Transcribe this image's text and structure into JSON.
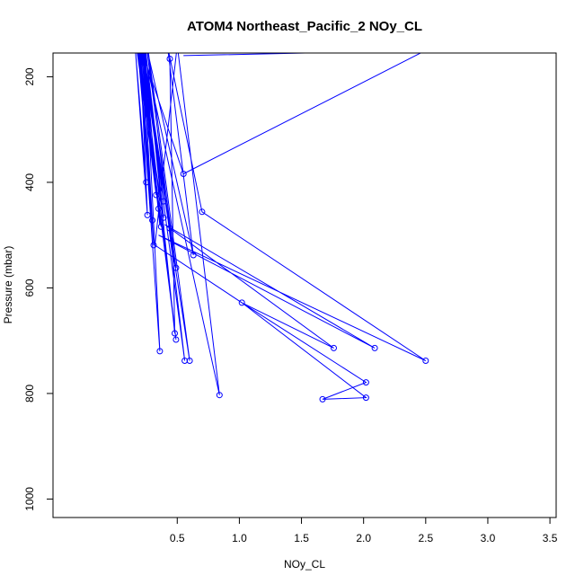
{
  "chart_data": {
    "type": "line",
    "title": "ATOM4 Northeast_Pacific_2 NOy_CL",
    "xlabel": "NOy_CL",
    "ylabel": "Pressure (mbar)",
    "xlim": [
      -0.5,
      3.55
    ],
    "ylim": [
      1035,
      155
    ],
    "y_reversed": true,
    "grid": false,
    "x_ticks": [
      {
        "value": 0.5,
        "label": "0.5"
      },
      {
        "value": 1.0,
        "label": "1.0"
      },
      {
        "value": 1.5,
        "label": "1.5"
      },
      {
        "value": 2.0,
        "label": "2.0"
      },
      {
        "value": 2.5,
        "label": "2.5"
      },
      {
        "value": 3.0,
        "label": "3.0"
      },
      {
        "value": 3.5,
        "label": "3.5"
      }
    ],
    "y_ticks": [
      {
        "value": 200,
        "label": "200"
      },
      {
        "value": 400,
        "label": "400"
      },
      {
        "value": 600,
        "label": "600"
      },
      {
        "value": 800,
        "label": "800"
      },
      {
        "value": 1000,
        "label": "1000"
      }
    ],
    "color": "#0000ff",
    "series": [
      {
        "points": [
          {
            "x": 0.55,
            "y": 160
          },
          {
            "x": 2.5,
            "y": 150
          },
          {
            "x": 0.55,
            "y": 384
          },
          {
            "x": 0.2,
            "y": 140
          },
          {
            "x": 0.25,
            "y": 400
          },
          {
            "x": 0.16,
            "y": 140
          },
          {
            "x": 0.26,
            "y": 462
          },
          {
            "x": 0.2,
            "y": 140
          },
          {
            "x": 0.3,
            "y": 472
          },
          {
            "x": 0.18,
            "y": 140
          },
          {
            "x": 0.33,
            "y": 424
          },
          {
            "x": 0.22,
            "y": 140
          },
          {
            "x": 0.31,
            "y": 519
          },
          {
            "x": 0.19,
            "y": 140
          },
          {
            "x": 0.35,
            "y": 450
          },
          {
            "x": 0.23,
            "y": 140
          },
          {
            "x": 0.36,
            "y": 481
          },
          {
            "x": 0.21,
            "y": 140
          },
          {
            "x": 0.39,
            "y": 436
          },
          {
            "x": 0.24,
            "y": 140
          },
          {
            "x": 0.39,
            "y": 467
          },
          {
            "x": 0.17,
            "y": 140
          },
          {
            "x": 0.37,
            "y": 484
          },
          {
            "x": 0.2,
            "y": 140
          },
          {
            "x": 0.44,
            "y": 487
          },
          {
            "x": 0.22,
            "y": 140
          },
          {
            "x": 0.49,
            "y": 562
          },
          {
            "x": 0.25,
            "y": 140
          },
          {
            "x": 0.63,
            "y": 538
          },
          {
            "x": 0.42,
            "y": 140
          },
          {
            "x": 0.7,
            "y": 456
          },
          {
            "x": 2.5,
            "y": 738
          },
          {
            "x": 0.35,
            "y": 500
          },
          {
            "x": 2.09,
            "y": 714
          },
          {
            "x": 0.4,
            "y": 480
          },
          {
            "x": 1.76,
            "y": 714
          },
          {
            "x": 1.02,
            "y": 628
          },
          {
            "x": 2.02,
            "y": 779
          },
          {
            "x": 1.67,
            "y": 811
          },
          {
            "x": 2.02,
            "y": 808
          },
          {
            "x": 1.02,
            "y": 628
          },
          {
            "x": 0.32,
            "y": 519
          },
          {
            "x": 0.5,
            "y": 140
          },
          {
            "x": 0.84,
            "y": 803
          },
          {
            "x": 0.22,
            "y": 140
          },
          {
            "x": 0.56,
            "y": 738
          },
          {
            "x": 0.26,
            "y": 140
          },
          {
            "x": 0.6,
            "y": 738
          },
          {
            "x": 0.21,
            "y": 140
          },
          {
            "x": 0.49,
            "y": 698
          },
          {
            "x": 0.19,
            "y": 140
          },
          {
            "x": 0.36,
            "y": 720
          },
          {
            "x": 0.24,
            "y": 140
          },
          {
            "x": 0.48,
            "y": 686
          },
          {
            "x": 0.44,
            "y": 166
          }
        ],
        "markers": [
          {
            "x": 0.44,
            "y": 166
          },
          {
            "x": 0.55,
            "y": 384
          },
          {
            "x": 0.25,
            "y": 400
          },
          {
            "x": 0.7,
            "y": 456
          },
          {
            "x": 0.33,
            "y": 424
          },
          {
            "x": 0.39,
            "y": 436
          },
          {
            "x": 0.35,
            "y": 450
          },
          {
            "x": 0.26,
            "y": 462
          },
          {
            "x": 0.39,
            "y": 467
          },
          {
            "x": 0.3,
            "y": 472
          },
          {
            "x": 0.37,
            "y": 484
          },
          {
            "x": 0.44,
            "y": 487
          },
          {
            "x": 0.31,
            "y": 519
          },
          {
            "x": 0.63,
            "y": 538
          },
          {
            "x": 0.49,
            "y": 562
          },
          {
            "x": 1.02,
            "y": 628
          },
          {
            "x": 0.48,
            "y": 686
          },
          {
            "x": 0.49,
            "y": 698
          },
          {
            "x": 1.76,
            "y": 714
          },
          {
            "x": 2.09,
            "y": 714
          },
          {
            "x": 0.36,
            "y": 720
          },
          {
            "x": 2.5,
            "y": 738
          },
          {
            "x": 0.56,
            "y": 738
          },
          {
            "x": 0.6,
            "y": 738
          },
          {
            "x": 2.02,
            "y": 779
          },
          {
            "x": 0.84,
            "y": 803
          },
          {
            "x": 2.02,
            "y": 808
          },
          {
            "x": 1.67,
            "y": 811
          }
        ]
      }
    ]
  }
}
